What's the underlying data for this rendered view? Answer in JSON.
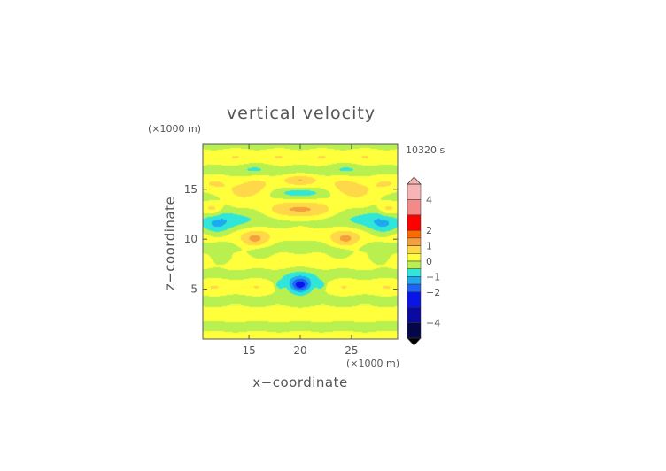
{
  "chart_data": {
    "type": "heatmap",
    "title": "vertical velocity",
    "time_label": "10320 s",
    "xlabel": "x−coordinate",
    "ylabel": "z−coordinate",
    "x_unit": "(×1000 m)",
    "y_unit": "(×1000 m)",
    "xlim": [
      10.5,
      29.5
    ],
    "ylim": [
      0,
      19.5
    ],
    "x_ticks": [
      15,
      20,
      25
    ],
    "y_ticks": [
      5,
      10,
      15
    ],
    "x_tick_labels": [
      "15",
      "20",
      "25"
    ],
    "y_tick_labels": [
      "5",
      "10",
      "15"
    ],
    "colorbar": {
      "range": [
        -5,
        5
      ],
      "ticks": [
        4,
        2,
        1,
        0,
        -1,
        -2,
        -4
      ],
      "tick_labels": [
        "4",
        "2",
        "1",
        "0",
        "−1",
        "−2",
        "−4"
      ],
      "levels": [
        {
          "from": 4,
          "to": 5,
          "color": "#f6b4b4"
        },
        {
          "from": 3,
          "to": 4,
          "color": "#f28a8a"
        },
        {
          "from": 2,
          "to": 3,
          "color": "#ff0000"
        },
        {
          "from": 1.5,
          "to": 2,
          "color": "#ff6a00"
        },
        {
          "from": 1,
          "to": 1.5,
          "color": "#f59e3c"
        },
        {
          "from": 0.5,
          "to": 1,
          "color": "#ffd84a"
        },
        {
          "from": 0,
          "to": 0.5,
          "color": "#ffff3c"
        },
        {
          "from": -0.5,
          "to": 0,
          "color": "#b8f050"
        },
        {
          "from": -1,
          "to": -0.5,
          "color": "#30e6d8"
        },
        {
          "from": -1.5,
          "to": -1,
          "color": "#1ea8f0"
        },
        {
          "from": -2,
          "to": -1.5,
          "color": "#1e64f5"
        },
        {
          "from": -3,
          "to": -2,
          "color": "#0a14e6"
        },
        {
          "from": -4,
          "to": -3,
          "color": "#0a0aa0"
        },
        {
          "from": -5,
          "to": -4,
          "color": "#05054a"
        }
      ]
    },
    "field_features": [
      {
        "x": 20,
        "z": 5.4,
        "sx": 0.7,
        "sz": 0.5,
        "value": -1.8
      },
      {
        "x": 20,
        "z": 5.5,
        "sx": 1.4,
        "sz": 0.8,
        "value": -1.0
      },
      {
        "x": 18.0,
        "z": 5.4,
        "sx": 0.3,
        "sz": 0.3,
        "value": -0.8
      },
      {
        "x": 22.0,
        "z": 5.4,
        "sx": 0.3,
        "sz": 0.3,
        "value": -0.8
      },
      {
        "x": 20,
        "z": 13.0,
        "sx": 1.4,
        "sz": 0.7,
        "value": 0.8
      },
      {
        "x": 20,
        "z": 14.7,
        "sx": 1.5,
        "sz": 0.35,
        "value": -0.8
      },
      {
        "x": 20,
        "z": 16.0,
        "sx": 1.2,
        "sz": 0.3,
        "value": 0.6
      },
      {
        "x": 20,
        "z": 10.3,
        "sx": 1.2,
        "sz": 0.5,
        "value": -0.4
      },
      {
        "x": 13.0,
        "z": 12.5,
        "sx": 2.0,
        "sz": 0.8,
        "value": -0.85
      },
      {
        "x": 27.0,
        "z": 12.5,
        "sx": 2.0,
        "sz": 0.8,
        "value": -0.85
      },
      {
        "x": 11.8,
        "z": 11.0,
        "sx": 1.0,
        "sz": 0.7,
        "value": -0.9
      },
      {
        "x": 28.2,
        "z": 11.0,
        "sx": 1.0,
        "sz": 0.7,
        "value": -0.9
      },
      {
        "x": 14.5,
        "z": 14.5,
        "sx": 1.6,
        "sz": 0.6,
        "value": 0.8
      },
      {
        "x": 25.5,
        "z": 14.5,
        "sx": 1.6,
        "sz": 0.6,
        "value": 0.8
      },
      {
        "x": 11.5,
        "z": 13.0,
        "sx": 0.6,
        "sz": 0.5,
        "value": 0.8
      },
      {
        "x": 28.5,
        "z": 13.0,
        "sx": 0.6,
        "sz": 0.5,
        "value": 0.8
      },
      {
        "x": 15.5,
        "z": 9.8,
        "sx": 1.0,
        "sz": 0.6,
        "value": 0.8
      },
      {
        "x": 24.5,
        "z": 9.8,
        "sx": 1.0,
        "sz": 0.6,
        "value": 0.8
      },
      {
        "x": 16.3,
        "z": 8.5,
        "sx": 0.8,
        "sz": 0.4,
        "value": -0.5
      },
      {
        "x": 23.7,
        "z": 8.5,
        "sx": 0.8,
        "sz": 0.4,
        "value": -0.5
      },
      {
        "x": 12.5,
        "z": 8.0,
        "sx": 0.8,
        "sz": 0.4,
        "value": -0.7
      },
      {
        "x": 27.5,
        "z": 8.0,
        "sx": 0.8,
        "sz": 0.4,
        "value": -0.7
      },
      {
        "x": 15.5,
        "z": 17.0,
        "sx": 1.2,
        "sz": 0.4,
        "value": -0.4
      },
      {
        "x": 24.5,
        "z": 17.0,
        "sx": 1.2,
        "sz": 0.4,
        "value": -0.4
      }
    ]
  }
}
